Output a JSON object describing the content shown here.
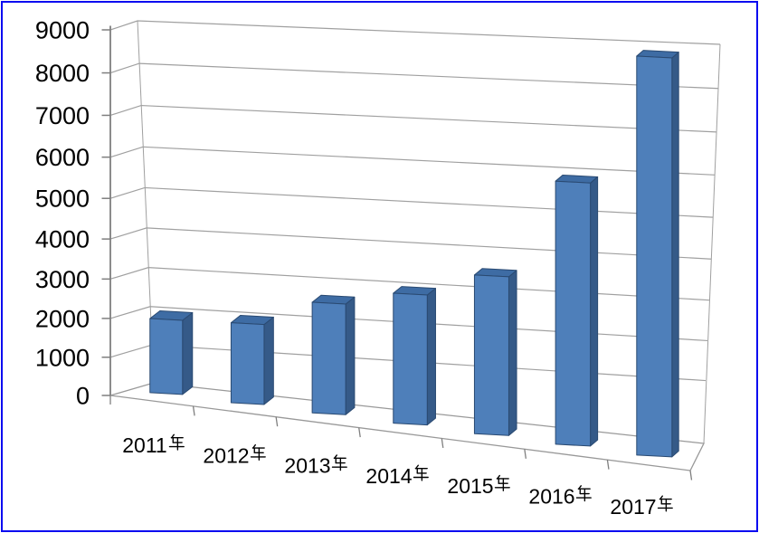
{
  "window": {
    "background": "#FFFFFF",
    "border_color": "#0A0AF0"
  },
  "chart_data": {
    "type": "bar",
    "projection": "3d",
    "title": "",
    "xlabel": "",
    "ylabel": "",
    "categories": [
      "2011年",
      "2012年",
      "2013年",
      "2014年",
      "2015年",
      "2016年",
      "2017年"
    ],
    "values": [
      1900,
      2000,
      2700,
      3100,
      3700,
      6000,
      8900
    ],
    "ylim": [
      0,
      9000
    ],
    "ytick_interval": 1000,
    "ytick_labels": [
      "0",
      "1000",
      "2000",
      "3000",
      "4000",
      "5000",
      "6000",
      "7000",
      "8000",
      "9000"
    ],
    "grid": true,
    "legend": false,
    "colors": {
      "bar_front": "#4E7FBA",
      "bar_top": "#3E6CA4",
      "bar_side": "#355A88",
      "bar_outline": "#2A4A72",
      "axis_line": "#7F7F7F",
      "gridline": "#A0A0A0",
      "text": "#000000"
    }
  }
}
